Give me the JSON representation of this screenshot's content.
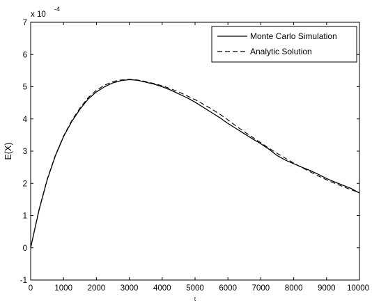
{
  "chart_data": {
    "type": "line",
    "xlabel": "t",
    "ylabel": "E(X)",
    "xlim": [
      0,
      10000
    ],
    "ylim": [
      -1,
      7
    ],
    "y_multiplier": "x 10",
    "y_multiplier_exponent": "-4",
    "grid": false,
    "legend_position": "top-right",
    "x_ticks": [
      "0",
      "1000",
      "2000",
      "3000",
      "4000",
      "5000",
      "6000",
      "7000",
      "8000",
      "9000",
      "10000"
    ],
    "y_ticks": [
      "-1",
      "0",
      "1",
      "2",
      "3",
      "4",
      "5",
      "6",
      "7"
    ],
    "x_tick_values": [
      0,
      1000,
      2000,
      3000,
      4000,
      5000,
      6000,
      7000,
      8000,
      9000,
      10000
    ],
    "y_tick_values": [
      -1,
      0,
      1,
      2,
      3,
      4,
      5,
      6,
      7
    ],
    "series": [
      {
        "name": "Monte Carlo Simulation",
        "style": "solid",
        "color": "#000000",
        "x": [
          0,
          250,
          500,
          750,
          1000,
          1250,
          1500,
          1750,
          2000,
          2250,
          2500,
          2750,
          3000,
          3250,
          3500,
          3750,
          4000,
          4250,
          4500,
          4750,
          5000,
          5250,
          5500,
          5750,
          6000,
          6250,
          6500,
          6750,
          7000,
          7250,
          7500,
          7750,
          8000,
          8250,
          8500,
          8750,
          9000,
          9250,
          9500,
          9750,
          10000
        ],
        "y": [
          0,
          1.15,
          2.1,
          2.85,
          3.45,
          3.92,
          4.3,
          4.62,
          4.84,
          5.0,
          5.12,
          5.19,
          5.22,
          5.2,
          5.14,
          5.08,
          5.0,
          4.9,
          4.78,
          4.66,
          4.52,
          4.36,
          4.2,
          4.04,
          3.86,
          3.7,
          3.54,
          3.38,
          3.23,
          3.06,
          2.86,
          2.72,
          2.61,
          2.5,
          2.4,
          2.28,
          2.15,
          2.04,
          1.94,
          1.84,
          1.7
        ]
      },
      {
        "name": "Analytic Solution",
        "style": "dashed",
        "color": "#000000",
        "x": [
          0,
          250,
          500,
          750,
          1000,
          1250,
          1500,
          1750,
          2000,
          2250,
          2500,
          2750,
          3000,
          3250,
          3500,
          3750,
          4000,
          4250,
          4500,
          4750,
          5000,
          5250,
          5500,
          5750,
          6000,
          6250,
          6500,
          6750,
          7000,
          7250,
          7500,
          7750,
          8000,
          8250,
          8500,
          8750,
          9000,
          9250,
          9500,
          9750,
          10000
        ],
        "y": [
          0,
          1.17,
          2.12,
          2.87,
          3.47,
          3.95,
          4.34,
          4.66,
          4.89,
          5.05,
          5.16,
          5.21,
          5.23,
          5.21,
          5.16,
          5.1,
          5.03,
          4.94,
          4.84,
          4.72,
          4.6,
          4.46,
          4.31,
          4.15,
          3.97,
          3.78,
          3.6,
          3.43,
          3.26,
          3.09,
          2.93,
          2.78,
          2.63,
          2.49,
          2.36,
          2.23,
          2.11,
          2.0,
          1.9,
          1.8,
          1.71
        ]
      }
    ]
  }
}
